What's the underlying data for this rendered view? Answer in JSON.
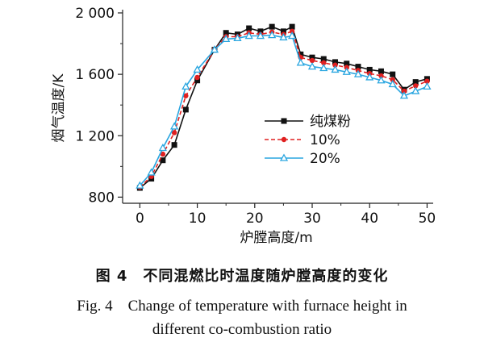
{
  "chart_data": {
    "type": "line",
    "title": "",
    "xlabel": "炉膛高度/m",
    "ylabel": "烟气温度/K",
    "xlim": [
      -3,
      50.5
    ],
    "ylim": [
      760,
      2000
    ],
    "xticks": [
      0,
      10,
      20,
      30,
      40,
      50
    ],
    "yticks": [
      800,
      1200,
      1600,
      2000
    ],
    "ytick_labels": [
      "800",
      "1 200",
      "1 600",
      "2 000"
    ],
    "grid": false,
    "legend": "center-right",
    "series": [
      {
        "name": "纯煤粉",
        "color": "#111111",
        "marker": "square",
        "x": [
          0,
          2,
          4,
          6,
          8,
          10,
          13,
          15,
          17,
          19,
          21,
          23,
          25,
          26.5,
          28,
          30,
          32,
          34,
          36,
          38,
          40,
          42,
          44,
          46,
          48,
          50
        ],
        "y": [
          860,
          920,
          1040,
          1140,
          1370,
          1560,
          1760,
          1870,
          1860,
          1900,
          1880,
          1910,
          1880,
          1910,
          1730,
          1710,
          1700,
          1680,
          1670,
          1650,
          1630,
          1620,
          1600,
          1500,
          1550,
          1570
        ]
      },
      {
        "name": "10%",
        "color": "#e02020",
        "marker": "circle",
        "x": [
          0,
          2,
          4,
          6,
          8,
          10,
          13,
          15,
          17,
          19,
          21,
          23,
          25,
          26.5,
          28,
          30,
          32,
          34,
          36,
          38,
          40,
          42,
          44,
          46,
          48,
          50
        ],
        "y": [
          865,
          935,
          1080,
          1220,
          1460,
          1580,
          1760,
          1845,
          1845,
          1870,
          1860,
          1875,
          1860,
          1880,
          1710,
          1690,
          1675,
          1660,
          1645,
          1625,
          1605,
          1590,
          1565,
          1490,
          1525,
          1555
        ]
      },
      {
        "name": "20%",
        "color": "#2aa6e0",
        "marker": "triangle",
        "x": [
          0,
          2,
          4,
          6,
          8,
          10,
          13,
          15,
          17,
          19,
          21,
          23,
          25,
          26.5,
          28,
          30,
          32,
          34,
          36,
          38,
          40,
          42,
          44,
          46,
          48,
          50
        ],
        "y": [
          875,
          960,
          1120,
          1260,
          1520,
          1630,
          1760,
          1830,
          1835,
          1850,
          1850,
          1855,
          1840,
          1850,
          1675,
          1650,
          1640,
          1630,
          1615,
          1600,
          1580,
          1560,
          1535,
          1460,
          1490,
          1520
        ]
      }
    ]
  },
  "caption": {
    "cn": "图 4　不同混燃比时温度随炉膛高度的变化",
    "en_line1": "Fig. 4　Change of temperature with furnace height in",
    "en_line2": "different co-combustion ratio"
  }
}
